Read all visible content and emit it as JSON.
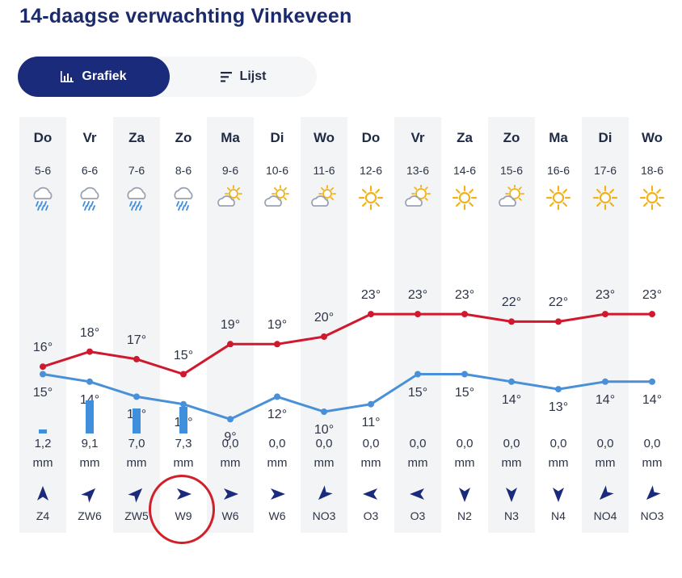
{
  "page": {
    "title": "14-daagse verwachting Vinkeveen"
  },
  "toggle": {
    "graph_label": "Grafiek",
    "list_label": "Lijst",
    "active": "graph"
  },
  "colors": {
    "max_line": "#d0182e",
    "min_line": "#4a90d9",
    "rain_bar": "#3f8fdc",
    "accent": "#1b2b7c",
    "highlight": "#d0202a"
  },
  "days": [
    {
      "day": "Do",
      "date": "5-6",
      "icon": "rain-cloud-icon",
      "max": "16°",
      "min": "15°",
      "rain": "1,2",
      "rain_mm": 1.2,
      "unit": "mm",
      "wind": "Z4",
      "wind_arrow_rotation_deg": 0
    },
    {
      "day": "Vr",
      "date": "6-6",
      "icon": "rain-cloud-icon",
      "max": "18°",
      "min": "14°",
      "rain": "9,1",
      "rain_mm": 9.1,
      "unit": "mm",
      "wind": "ZW6",
      "wind_arrow_rotation_deg": 45
    },
    {
      "day": "Za",
      "date": "7-6",
      "icon": "rain-cloud-icon",
      "max": "17°",
      "min": "12°",
      "rain": "7,0",
      "rain_mm": 7.0,
      "unit": "mm",
      "wind": "ZW5",
      "wind_arrow_rotation_deg": 45
    },
    {
      "day": "Zo",
      "date": "8-6",
      "icon": "rain-cloud-icon",
      "max": "15°",
      "min": "11°",
      "rain": "7,3",
      "rain_mm": 7.3,
      "unit": "mm",
      "wind": "W9",
      "wind_arrow_rotation_deg": 90
    },
    {
      "day": "Ma",
      "date": "9-6",
      "icon": "partly-cloudy-icon",
      "max": "19°",
      "min": "9°",
      "rain": "0,0",
      "rain_mm": 0.0,
      "unit": "mm",
      "wind": "W6",
      "wind_arrow_rotation_deg": 90
    },
    {
      "day": "Di",
      "date": "10-6",
      "icon": "partly-cloudy-icon",
      "max": "19°",
      "min": "12°",
      "rain": "0,0",
      "rain_mm": 0.0,
      "unit": "mm",
      "wind": "W6",
      "wind_arrow_rotation_deg": 90
    },
    {
      "day": "Wo",
      "date": "11-6",
      "icon": "partly-cloudy-icon",
      "max": "20°",
      "min": "10°",
      "rain": "0,0",
      "rain_mm": 0.0,
      "unit": "mm",
      "wind": "NO3",
      "wind_arrow_rotation_deg": 225
    },
    {
      "day": "Do",
      "date": "12-6",
      "icon": "sun-icon",
      "max": "23°",
      "min": "11°",
      "rain": "0,0",
      "rain_mm": 0.0,
      "unit": "mm",
      "wind": "O3",
      "wind_arrow_rotation_deg": 270
    },
    {
      "day": "Vr",
      "date": "13-6",
      "icon": "sun-cloud-icon",
      "max": "23°",
      "min": "15°",
      "rain": "0,0",
      "rain_mm": 0.0,
      "unit": "mm",
      "wind": "O3",
      "wind_arrow_rotation_deg": 270
    },
    {
      "day": "Za",
      "date": "14-6",
      "icon": "sun-icon",
      "max": "23°",
      "min": "15°",
      "rain": "0,0",
      "rain_mm": 0.0,
      "unit": "mm",
      "wind": "N2",
      "wind_arrow_rotation_deg": 180
    },
    {
      "day": "Zo",
      "date": "15-6",
      "icon": "sun-cloud-icon",
      "max": "22°",
      "min": "14°",
      "rain": "0,0",
      "rain_mm": 0.0,
      "unit": "mm",
      "wind": "N3",
      "wind_arrow_rotation_deg": 180
    },
    {
      "day": "Ma",
      "date": "16-6",
      "icon": "sun-icon",
      "max": "22°",
      "min": "13°",
      "rain": "0,0",
      "rain_mm": 0.0,
      "unit": "mm",
      "wind": "N4",
      "wind_arrow_rotation_deg": 180
    },
    {
      "day": "Di",
      "date": "17-6",
      "icon": "sun-icon",
      "max": "23°",
      "min": "14°",
      "rain": "0,0",
      "rain_mm": 0.0,
      "unit": "mm",
      "wind": "NO4",
      "wind_arrow_rotation_deg": 225
    },
    {
      "day": "Wo",
      "date": "18-6",
      "icon": "sun-icon",
      "max": "23°",
      "min": "14°",
      "rain": "0,0",
      "rain_mm": 0.0,
      "unit": "mm",
      "wind": "NO3",
      "wind_arrow_rotation_deg": 225
    }
  ],
  "chart_data": {
    "type": "line",
    "categories": [
      "5-6",
      "6-6",
      "7-6",
      "8-6",
      "9-6",
      "10-6",
      "11-6",
      "12-6",
      "13-6",
      "14-6",
      "15-6",
      "16-6",
      "17-6",
      "18-6"
    ],
    "series": [
      {
        "values": [
          16,
          18,
          17,
          15,
          19,
          19,
          20,
          23,
          23,
          23,
          22,
          22,
          23,
          23
        ]
      },
      {
        "values": [
          15,
          14,
          12,
          11,
          9,
          12,
          10,
          11,
          15,
          15,
          14,
          13,
          14,
          14
        ]
      }
    ],
    "rain_mm": [
      1.2,
      9.1,
      7.0,
      7.3,
      0.0,
      0.0,
      0.0,
      0.0,
      0.0,
      0.0,
      0.0,
      0.0,
      0.0,
      0.0
    ]
  },
  "annotations": [
    {
      "type": "circle",
      "target": "W9"
    }
  ]
}
